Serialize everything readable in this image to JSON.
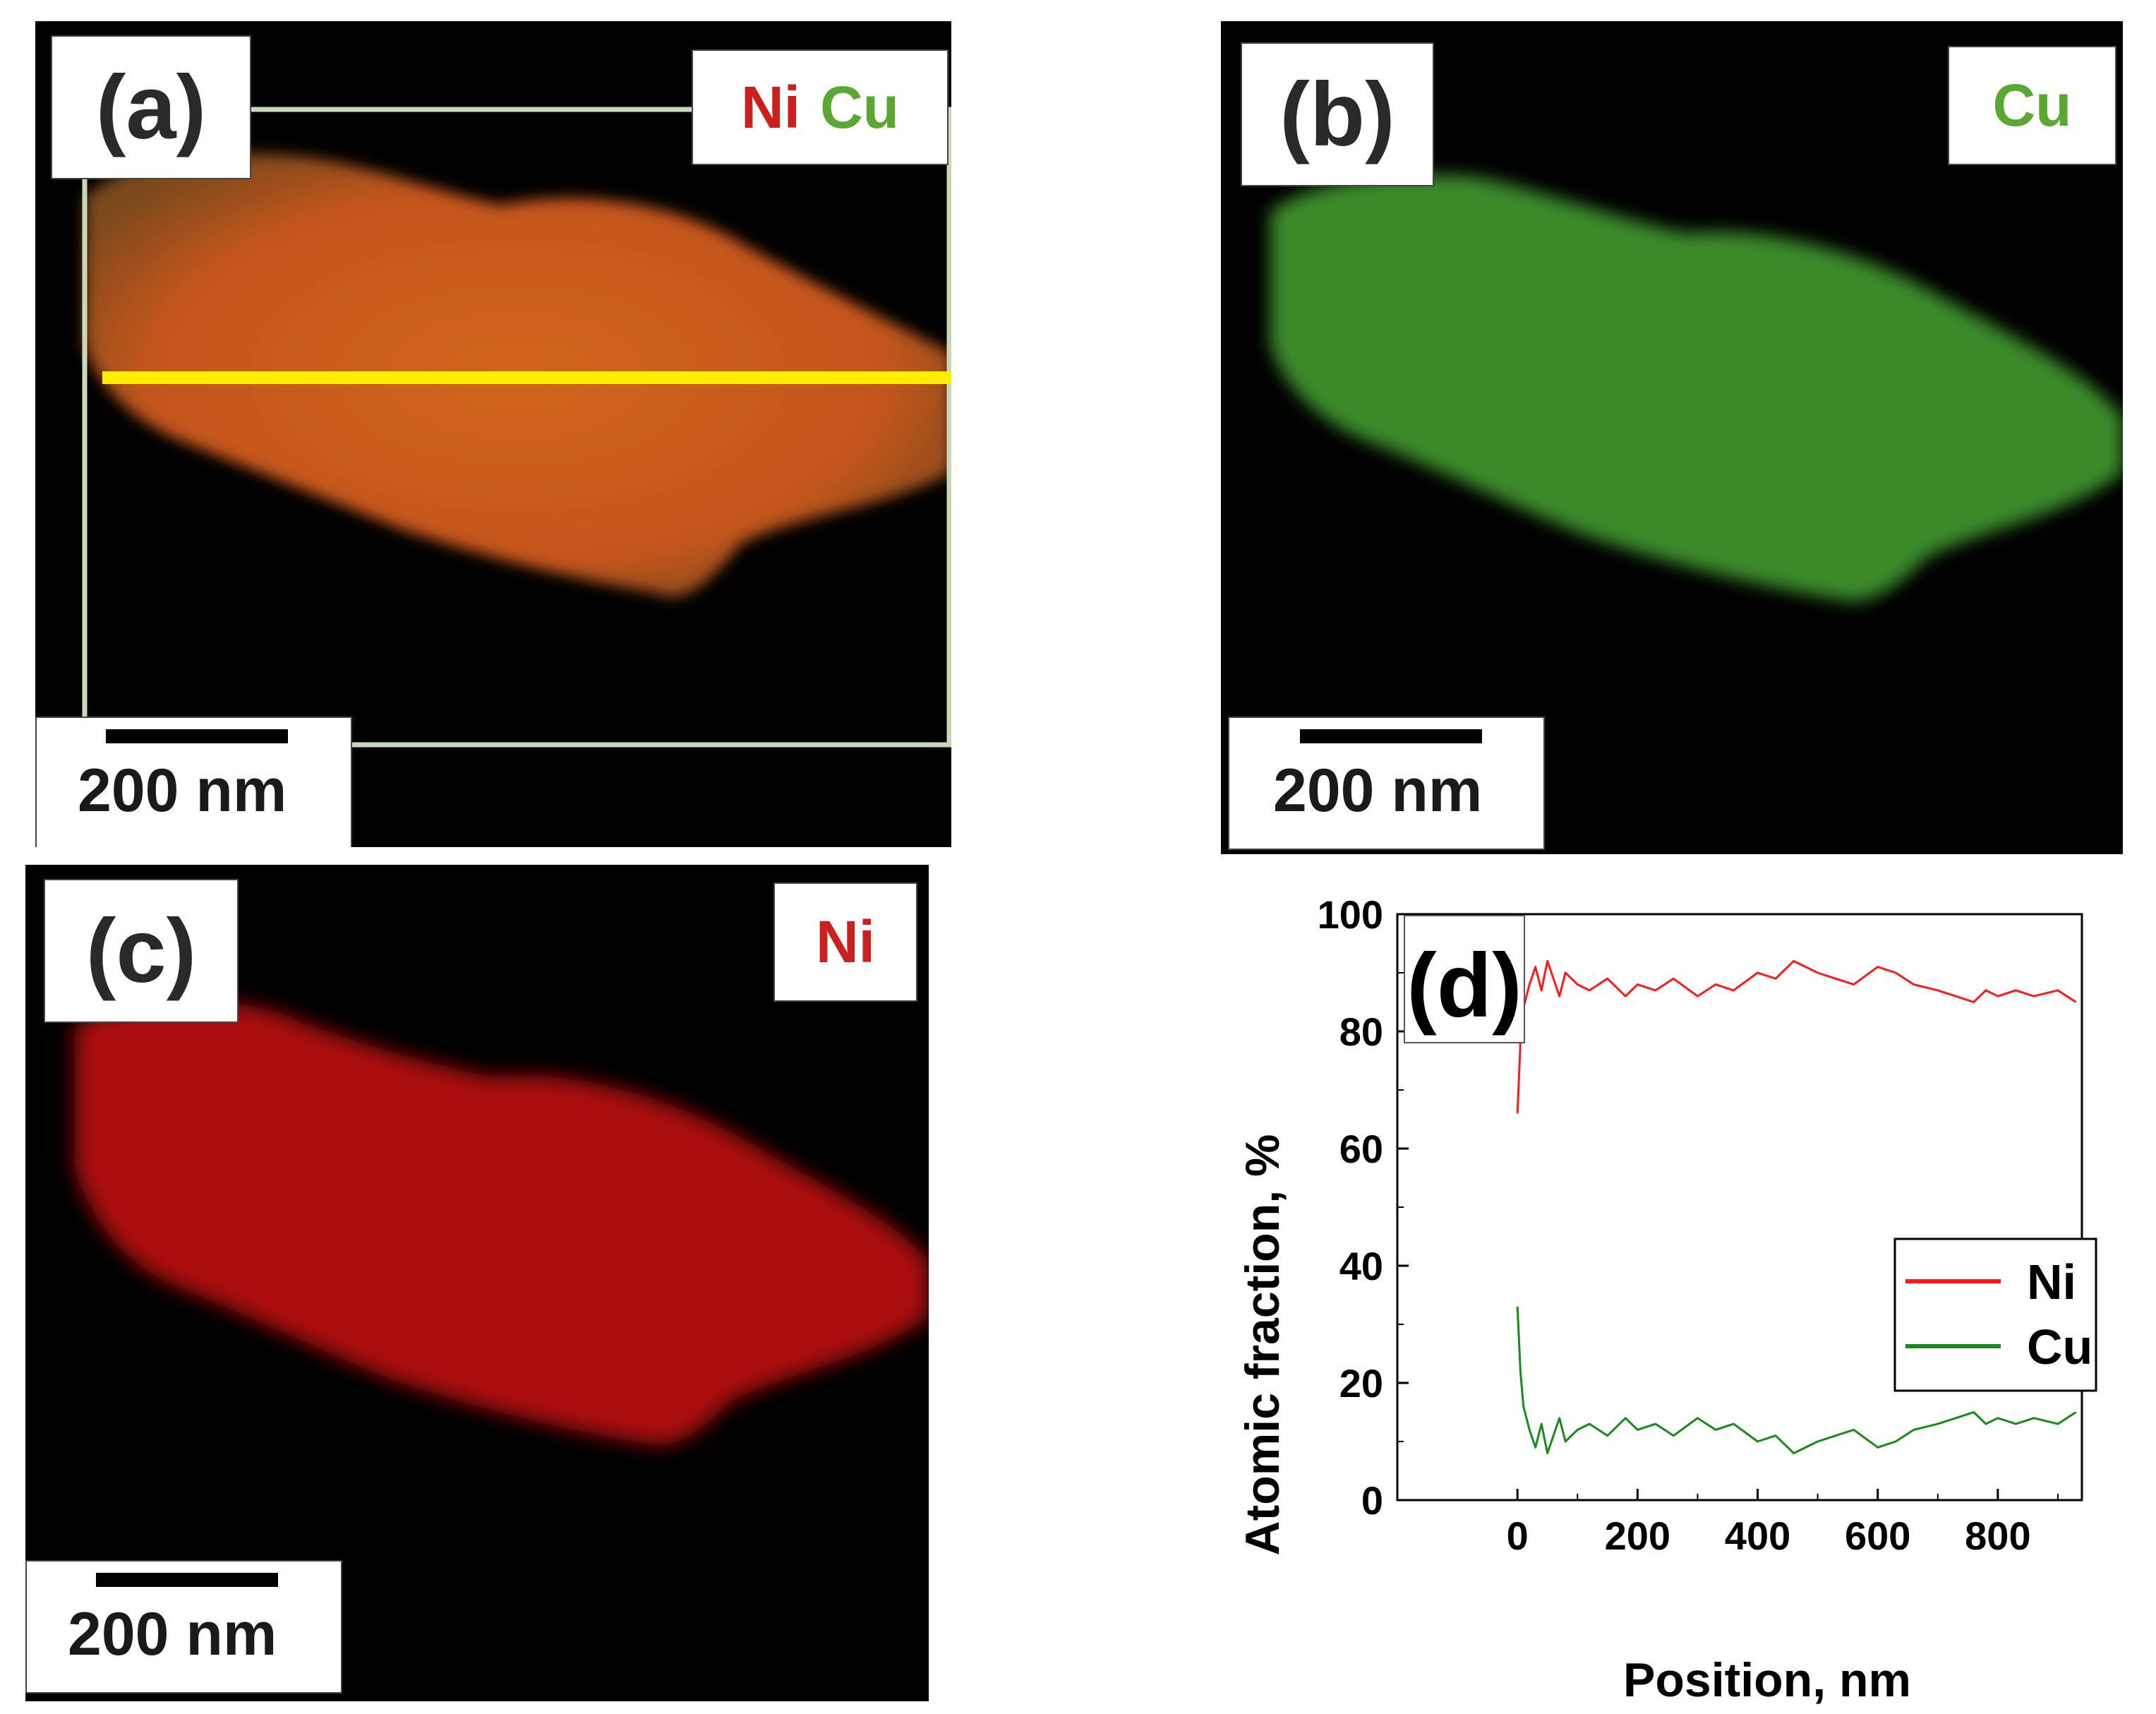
{
  "panel_a": {
    "label": "(a)",
    "elements": [
      "Ni",
      "Cu"
    ],
    "scale": "200 nm"
  },
  "panel_b": {
    "label": "(b)",
    "element": "Cu",
    "scale": "200 nm"
  },
  "panel_c": {
    "label": "(c)",
    "element": "Ni",
    "scale": "200 nm"
  },
  "panel_d": {
    "label": "(d)"
  },
  "colors": {
    "ni": "#cc1f1f",
    "cu": "#5aa832",
    "ni_line": "#ff1a1a",
    "cu_line": "#1a8a1a",
    "scan_line": "#ffee00"
  },
  "chart_data": {
    "type": "line",
    "title": "",
    "xlabel": "Position, nm",
    "ylabel": "Atomic fraction, %",
    "xlim": [
      -200,
      940
    ],
    "ylim": [
      0,
      100
    ],
    "xticks": [
      0,
      200,
      400,
      600,
      800
    ],
    "yticks": [
      0,
      20,
      40,
      60,
      80,
      100
    ],
    "legend": "right",
    "series": [
      {
        "name": "Ni",
        "x": [
          0,
          5,
          10,
          20,
          30,
          40,
          50,
          60,
          70,
          80,
          100,
          120,
          150,
          180,
          200,
          230,
          260,
          300,
          330,
          360,
          400,
          430,
          460,
          500,
          530,
          560,
          600,
          630,
          660,
          700,
          730,
          760,
          780,
          800,
          830,
          860,
          900,
          930
        ],
        "values": [
          66,
          78,
          84,
          88,
          91,
          87,
          92,
          89,
          86,
          90,
          88,
          87,
          89,
          86,
          88,
          87,
          89,
          86,
          88,
          87,
          90,
          89,
          92,
          90,
          89,
          88,
          91,
          90,
          88,
          87,
          86,
          85,
          87,
          86,
          87,
          86,
          87,
          85
        ]
      },
      {
        "name": "Cu",
        "x": [
          0,
          5,
          10,
          20,
          30,
          40,
          50,
          60,
          70,
          80,
          100,
          120,
          150,
          180,
          200,
          230,
          260,
          300,
          330,
          360,
          400,
          430,
          460,
          500,
          530,
          560,
          600,
          630,
          660,
          700,
          730,
          760,
          780,
          800,
          830,
          860,
          900,
          930
        ],
        "values": [
          33,
          22,
          16,
          12,
          9,
          13,
          8,
          11,
          14,
          10,
          12,
          13,
          11,
          14,
          12,
          13,
          11,
          14,
          12,
          13,
          10,
          11,
          8,
          10,
          11,
          12,
          9,
          10,
          12,
          13,
          14,
          15,
          13,
          14,
          13,
          14,
          13,
          15
        ]
      }
    ]
  }
}
